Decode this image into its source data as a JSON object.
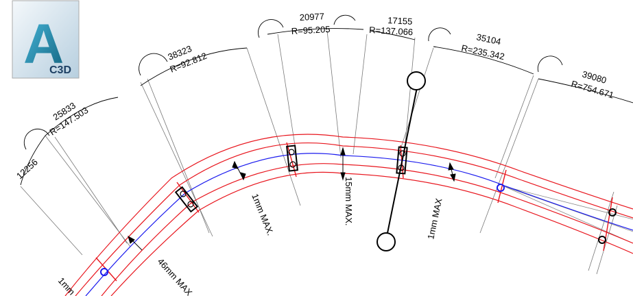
{
  "logo": {
    "letter": "A",
    "product": "C3D"
  },
  "segments": [
    {
      "length": "12256",
      "radius": ""
    },
    {
      "length": "25833",
      "radius": "R=147.503"
    },
    {
      "length": "38323",
      "radius": "R=92.812"
    },
    {
      "length": "20977",
      "radius": "R=95.205"
    },
    {
      "length": "17155",
      "radius": "R=137.066"
    },
    {
      "length": "35104",
      "radius": "R=235.342"
    },
    {
      "length": "39080",
      "radius": "R=754.671"
    }
  ],
  "tolerances": [
    {
      "text": "1mm MAX."
    },
    {
      "text": "15mm MAX."
    },
    {
      "text": "1mm MAX"
    },
    {
      "text": "46mm MAX"
    },
    {
      "text": "1mm"
    }
  ],
  "colors": {
    "rail": "#e8141c",
    "centerline": "#1a1aee",
    "dim": "#555555"
  }
}
